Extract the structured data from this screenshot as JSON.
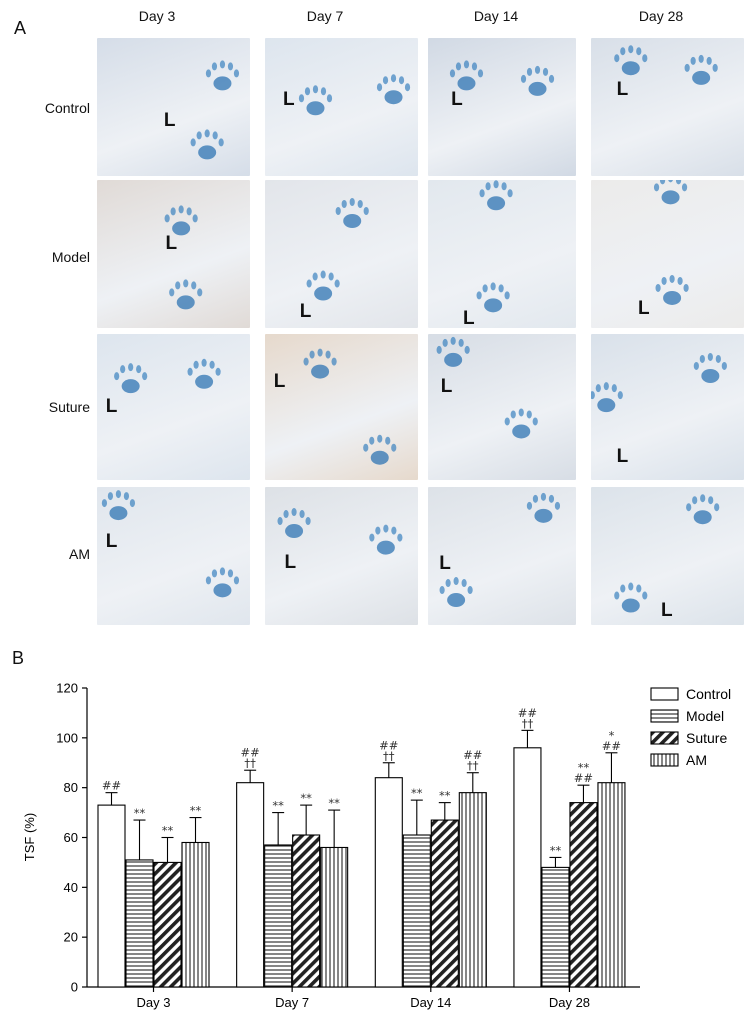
{
  "panels": {
    "a": "A",
    "b": "B"
  },
  "panel_a": {
    "columns": [
      "Day 3",
      "Day 7",
      "Day 14",
      "Day 28"
    ],
    "rows": [
      "Control",
      "Model",
      "Suture",
      "AM"
    ],
    "marker": "L"
  },
  "chart_data": {
    "type": "bar",
    "title": "",
    "ylabel": "TSF (%)",
    "xlabel": "",
    "ylim": [
      0,
      120
    ],
    "yticks": [
      0,
      20,
      40,
      60,
      80,
      100,
      120
    ],
    "categories": [
      "Day 3",
      "Day 7",
      "Day 14",
      "Day 28"
    ],
    "legend": "top-right",
    "series": [
      {
        "name": "Control",
        "pattern": "open",
        "values": [
          73,
          82,
          84,
          96
        ],
        "errors": [
          5,
          5,
          6,
          7
        ],
        "annotations": [
          [
            "##"
          ],
          [
            "##",
            "††"
          ],
          [
            "##",
            "††"
          ],
          [
            "##",
            "††"
          ]
        ]
      },
      {
        "name": "Model",
        "pattern": "horizontal",
        "values": [
          51,
          57,
          61,
          48
        ],
        "errors": [
          16,
          13,
          14,
          4
        ],
        "annotations": [
          [
            "**"
          ],
          [
            "**"
          ],
          [
            "**"
          ],
          [
            "**"
          ]
        ]
      },
      {
        "name": "Suture",
        "pattern": "diagonal",
        "values": [
          50,
          61,
          67,
          74
        ],
        "errors": [
          10,
          12,
          7,
          7
        ],
        "annotations": [
          [
            "**"
          ],
          [
            "**"
          ],
          [
            "**"
          ],
          [
            "**",
            "##"
          ]
        ]
      },
      {
        "name": "AM",
        "pattern": "vertical",
        "values": [
          58,
          56,
          78,
          82
        ],
        "errors": [
          10,
          15,
          8,
          12
        ],
        "annotations": [
          [
            "**"
          ],
          [
            "**"
          ],
          [
            "##",
            "††"
          ],
          [
            "*",
            "##"
          ]
        ]
      }
    ]
  }
}
